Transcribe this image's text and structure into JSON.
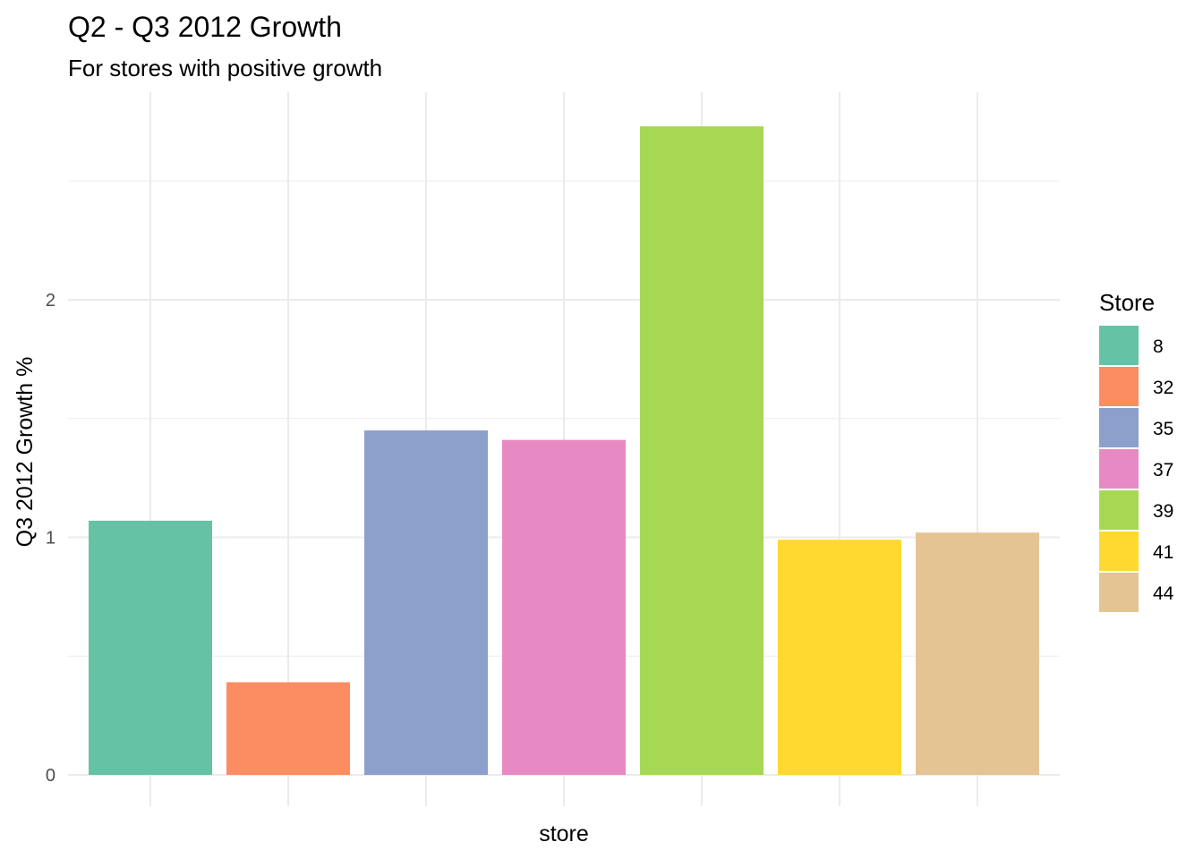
{
  "chart_data": {
    "type": "bar",
    "title": "Q2 - Q3 2012 Growth",
    "subtitle": "For stores with positive growth",
    "xlabel": "store",
    "ylabel": "Q3 2012 Growth %",
    "categories": [
      "8",
      "32",
      "35",
      "37",
      "39",
      "41",
      "44"
    ],
    "values": [
      1.07,
      0.39,
      1.45,
      1.41,
      2.73,
      0.99,
      1.02
    ],
    "colors": [
      "#66C2A5",
      "#FC8D62",
      "#8DA0CB",
      "#E78AC3",
      "#A6D854",
      "#FFD92F",
      "#E5C494"
    ],
    "ylim": [
      0,
      2.9
    ],
    "yticks": [
      0,
      1,
      2
    ],
    "grid": true,
    "x_tick_labels_shown": false,
    "legend": {
      "title": "Store",
      "position": "right",
      "items": [
        "8",
        "32",
        "35",
        "37",
        "39",
        "41",
        "44"
      ]
    }
  }
}
